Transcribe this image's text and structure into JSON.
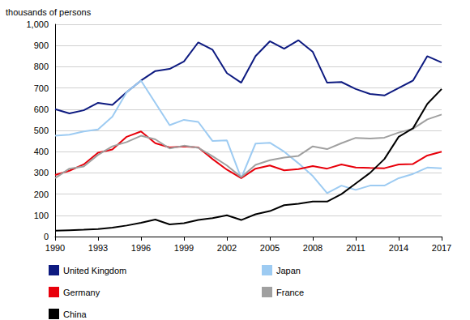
{
  "chart_data": {
    "type": "line",
    "ylabel": "thousands of persons",
    "categories": [
      "1990",
      null,
      null,
      "1993",
      null,
      null,
      "1996",
      null,
      null,
      "1999",
      null,
      null,
      "2002",
      null,
      null,
      "2005",
      null,
      null,
      "2008",
      null,
      null,
      "2011",
      null,
      null,
      "2014",
      null,
      null,
      "2017"
    ],
    "series": [
      {
        "name": "United Kingdom",
        "color": "#0d1a80",
        "values": [
          600,
          580,
          595,
          630,
          620,
          680,
          735,
          780,
          790,
          825,
          915,
          880,
          770,
          725,
          850,
          920,
          885,
          925,
          870,
          725,
          728,
          695,
          672,
          665,
          700,
          735,
          850,
          820
        ]
      },
      {
        "name": "Japan",
        "color": "#9dcbf2",
        "values": [
          475,
          480,
          495,
          505,
          565,
          680,
          735,
          630,
          525,
          550,
          540,
          450,
          453,
          275,
          438,
          442,
          400,
          345,
          285,
          205,
          240,
          220,
          240,
          240,
          275,
          295,
          325,
          322
        ]
      },
      {
        "name": "Germany",
        "color": "#e8000b",
        "values": [
          290,
          310,
          340,
          395,
          410,
          470,
          495,
          440,
          420,
          425,
          420,
          365,
          315,
          275,
          320,
          335,
          312,
          318,
          332,
          320,
          340,
          325,
          323,
          322,
          340,
          342,
          382,
          400
        ]
      },
      {
        "name": "France",
        "color": "#a0a0a0",
        "values": [
          275,
          320,
          330,
          385,
          425,
          445,
          475,
          458,
          415,
          428,
          418,
          378,
          335,
          280,
          338,
          360,
          372,
          380,
          425,
          412,
          440,
          465,
          462,
          466,
          490,
          508,
          552,
          575
        ]
      },
      {
        "name": "China",
        "color": "#000000",
        "values": [
          28,
          30,
          32,
          35,
          42,
          52,
          65,
          80,
          57,
          63,
          78,
          87,
          100,
          78,
          105,
          120,
          148,
          155,
          165,
          165,
          200,
          250,
          300,
          365,
          470,
          510,
          625,
          695
        ]
      }
    ],
    "ylim": [
      0,
      1000
    ],
    "yticks": [
      0,
      100,
      200,
      300,
      400,
      500,
      600,
      700,
      800,
      900,
      {
        "value": 1000,
        "label": "1,000"
      }
    ],
    "grid": true,
    "legend": "bottom"
  }
}
